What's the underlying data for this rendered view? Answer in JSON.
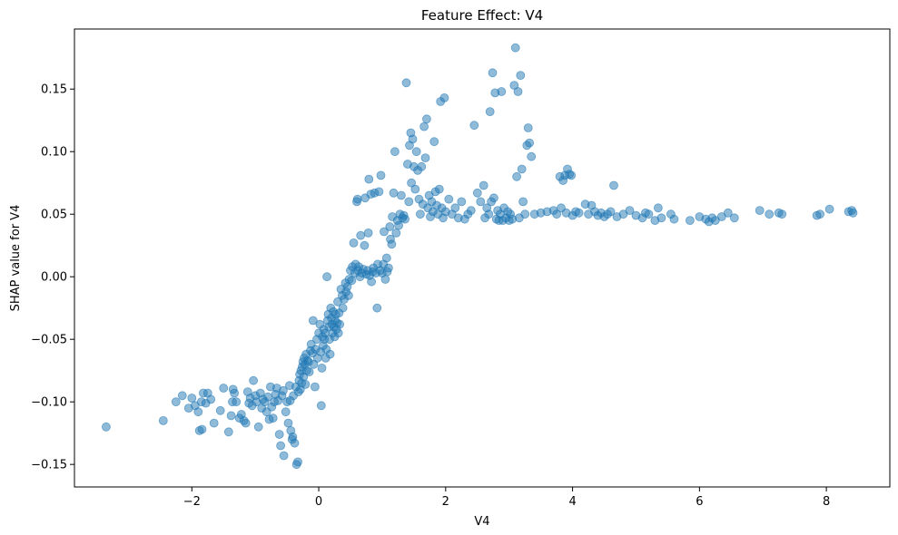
{
  "chart_data": {
    "type": "scatter",
    "title": "Feature Effect: V4",
    "xlabel": "V4",
    "ylabel": "SHAP value for V4",
    "xlim": [
      -3.85,
      9.0
    ],
    "ylim": [
      -0.168,
      0.198
    ],
    "xticks": [
      -2,
      0,
      2,
      4,
      6,
      8
    ],
    "yticks": [
      -0.15,
      -0.1,
      -0.05,
      0.0,
      0.05,
      0.1,
      0.15
    ],
    "xtick_labels": [
      "−2",
      "0",
      "2",
      "4",
      "6",
      "8"
    ],
    "ytick_labels": [
      "−0.15",
      "−0.10",
      "−0.05",
      "0.00",
      "0.05",
      "0.10",
      "0.15"
    ],
    "grid": false,
    "point_color": "#1f77b4",
    "point_alpha": 0.5,
    "points": [
      [
        -3.35,
        -0.12
      ],
      [
        -2.45,
        -0.115
      ],
      [
        -2.25,
        -0.1
      ],
      [
        -2.15,
        -0.095
      ],
      [
        -2.05,
        -0.105
      ],
      [
        -2.0,
        -0.097
      ],
      [
        -1.95,
        -0.103
      ],
      [
        -1.9,
        -0.108
      ],
      [
        -1.85,
        -0.1
      ],
      [
        -1.82,
        -0.093
      ],
      [
        -1.78,
        -0.101
      ],
      [
        -1.75,
        -0.093
      ],
      [
        -1.88,
        -0.123
      ],
      [
        -1.84,
        -0.122
      ],
      [
        -1.7,
        -0.098
      ],
      [
        -1.65,
        -0.117
      ],
      [
        -1.55,
        -0.107
      ],
      [
        -1.5,
        -0.089
      ],
      [
        -1.42,
        -0.124
      ],
      [
        -1.38,
        -0.111
      ],
      [
        -1.36,
        -0.1
      ],
      [
        -1.33,
        -0.093
      ],
      [
        -1.3,
        -0.1
      ],
      [
        -1.35,
        -0.09
      ],
      [
        -1.25,
        -0.113
      ],
      [
        -1.22,
        -0.11
      ],
      [
        -1.18,
        -0.115
      ],
      [
        -1.15,
        -0.117
      ],
      [
        -1.12,
        -0.092
      ],
      [
        -1.1,
        -0.101
      ],
      [
        -1.08,
        -0.097
      ],
      [
        -1.05,
        -0.103
      ],
      [
        -1.03,
        -0.083
      ],
      [
        -1.0,
        -0.095
      ],
      [
        -0.98,
        -0.1
      ],
      [
        -0.95,
        -0.12
      ],
      [
        -0.92,
        -0.093
      ],
      [
        -0.9,
        -0.105
      ],
      [
        -0.88,
        -0.098
      ],
      [
        -0.85,
        -0.1
      ],
      [
        -0.82,
        -0.108
      ],
      [
        -0.8,
        -0.096
      ],
      [
        -0.78,
        -0.114
      ],
      [
        -0.76,
        -0.088
      ],
      [
        -0.74,
        -0.104
      ],
      [
        -0.72,
        -0.113
      ],
      [
        -0.7,
        -0.1
      ],
      [
        -0.68,
        -0.094
      ],
      [
        -0.66,
        -0.089
      ],
      [
        -0.64,
        -0.099
      ],
      [
        -0.62,
        -0.126
      ],
      [
        -0.6,
        -0.135
      ],
      [
        -0.58,
        -0.095
      ],
      [
        -0.56,
        -0.091
      ],
      [
        -0.55,
        -0.143
      ],
      [
        -0.52,
        -0.108
      ],
      [
        -0.5,
        -0.1
      ],
      [
        -0.48,
        -0.117
      ],
      [
        -0.46,
        -0.087
      ],
      [
        -0.45,
        -0.099
      ],
      [
        -0.44,
        -0.123
      ],
      [
        -0.42,
        -0.13
      ],
      [
        -0.41,
        -0.128
      ],
      [
        -0.4,
        -0.095
      ],
      [
        -0.38,
        -0.133
      ],
      [
        -0.36,
        -0.088
      ],
      [
        -0.35,
        -0.15
      ],
      [
        -0.33,
        -0.148
      ],
      [
        -0.32,
        -0.092
      ],
      [
        -0.31,
        -0.083
      ],
      [
        -0.3,
        -0.078
      ],
      [
        -0.29,
        -0.09
      ],
      [
        -0.28,
        -0.075
      ],
      [
        -0.27,
        -0.085
      ],
      [
        -0.26,
        -0.072
      ],
      [
        -0.25,
        -0.068
      ],
      [
        -0.24,
        -0.08
      ],
      [
        -0.23,
        -0.065
      ],
      [
        -0.22,
        -0.07
      ],
      [
        -0.21,
        -0.086
      ],
      [
        -0.2,
        -0.062
      ],
      [
        -0.19,
        -0.075
      ],
      [
        -0.18,
        -0.067
      ],
      [
        -0.16,
        -0.068
      ],
      [
        -0.15,
        -0.076
      ],
      [
        -0.13,
        -0.059
      ],
      [
        -0.12,
        -0.054
      ],
      [
        -0.1,
        -0.061
      ],
      [
        -0.09,
        -0.035
      ],
      [
        -0.08,
        -0.07
      ],
      [
        -0.06,
        -0.088
      ],
      [
        -0.05,
        -0.058
      ],
      [
        -0.03,
        -0.05
      ],
      [
        -0.02,
        -0.065
      ],
      [
        0.0,
        -0.045
      ],
      [
        0.02,
        -0.038
      ],
      [
        0.03,
        -0.06
      ],
      [
        0.04,
        -0.103
      ],
      [
        0.05,
        -0.073
      ],
      [
        0.06,
        -0.048
      ],
      [
        0.07,
        -0.055
      ],
      [
        0.08,
        -0.042
      ],
      [
        0.09,
        -0.05
      ],
      [
        0.1,
        -0.045
      ],
      [
        0.11,
        -0.065
      ],
      [
        0.12,
        -0.058
      ],
      [
        0.13,
        0.0
      ],
      [
        0.14,
        -0.035
      ],
      [
        0.15,
        -0.03
      ],
      [
        0.16,
        -0.04
      ],
      [
        0.17,
        -0.05
      ],
      [
        0.18,
        -0.062
      ],
      [
        0.19,
        -0.025
      ],
      [
        0.2,
        -0.033
      ],
      [
        0.21,
        -0.038
      ],
      [
        0.22,
        -0.045
      ],
      [
        0.23,
        -0.028
      ],
      [
        0.24,
        -0.04
      ],
      [
        0.25,
        -0.048
      ],
      [
        0.26,
        -0.035
      ],
      [
        0.27,
        -0.03
      ],
      [
        0.28,
        -0.042
      ],
      [
        0.29,
        -0.037
      ],
      [
        0.3,
        -0.02
      ],
      [
        0.31,
        -0.045
      ],
      [
        0.32,
        -0.029
      ],
      [
        0.33,
        -0.038
      ],
      [
        0.35,
        -0.01
      ],
      [
        0.37,
        -0.015
      ],
      [
        0.38,
        -0.025
      ],
      [
        0.4,
        -0.018
      ],
      [
        0.42,
        -0.005
      ],
      [
        0.43,
        -0.012
      ],
      [
        0.45,
        -0.008
      ],
      [
        0.47,
        -0.015
      ],
      [
        0.48,
        -0.002
      ],
      [
        0.5,
        0.005
      ],
      [
        0.52,
        -0.003
      ],
      [
        0.53,
        0.008
      ],
      [
        0.55,
        0.027
      ],
      [
        0.57,
        0.003
      ],
      [
        0.58,
        0.01
      ],
      [
        0.6,
        0.06
      ],
      [
        0.61,
        0.062
      ],
      [
        0.62,
        0.005
      ],
      [
        0.63,
        0.008
      ],
      [
        0.65,
        0.0
      ],
      [
        0.66,
        0.033
      ],
      [
        0.68,
        0.003
      ],
      [
        0.7,
        0.006
      ],
      [
        0.72,
        0.025
      ],
      [
        0.73,
        0.063
      ],
      [
        0.75,
        0.002
      ],
      [
        0.77,
        0.005
      ],
      [
        0.78,
        0.035
      ],
      [
        0.79,
        0.078
      ],
      [
        0.8,
        0.001
      ],
      [
        0.82,
        0.066
      ],
      [
        0.83,
        -0.004
      ],
      [
        0.85,
        0.004
      ],
      [
        0.86,
        0.007
      ],
      [
        0.88,
        0.067
      ],
      [
        0.9,
        0.003
      ],
      [
        0.92,
        -0.025
      ],
      [
        0.93,
        0.01
      ],
      [
        0.95,
        0.068
      ],
      [
        0.97,
        0.005
      ],
      [
        0.98,
        0.081
      ],
      [
        1.0,
        0.003
      ],
      [
        1.02,
        0.01
      ],
      [
        1.03,
        0.036
      ],
      [
        1.05,
        -0.002
      ],
      [
        1.07,
        0.015
      ],
      [
        1.08,
        0.004
      ],
      [
        1.1,
        0.007
      ],
      [
        1.12,
        0.04
      ],
      [
        1.13,
        0.03
      ],
      [
        1.15,
        0.026
      ],
      [
        1.16,
        0.048
      ],
      [
        1.18,
        0.067
      ],
      [
        1.2,
        0.1
      ],
      [
        1.22,
        0.035
      ],
      [
        1.24,
        0.045
      ],
      [
        1.26,
        0.041
      ],
      [
        1.28,
        0.05
      ],
      [
        1.3,
        0.065
      ],
      [
        1.32,
        0.047
      ],
      [
        1.34,
        0.049
      ],
      [
        1.36,
        0.046
      ],
      [
        1.38,
        0.155
      ],
      [
        1.4,
        0.09
      ],
      [
        1.42,
        0.06
      ],
      [
        1.43,
        0.105
      ],
      [
        1.45,
        0.115
      ],
      [
        1.46,
        0.075
      ],
      [
        1.48,
        0.11
      ],
      [
        1.5,
        0.088
      ],
      [
        1.52,
        0.07
      ],
      [
        1.54,
        0.1
      ],
      [
        1.56,
        0.085
      ],
      [
        1.58,
        0.062
      ],
      [
        1.6,
        0.05
      ],
      [
        1.62,
        0.088
      ],
      [
        1.64,
        0.058
      ],
      [
        1.66,
        0.12
      ],
      [
        1.68,
        0.095
      ],
      [
        1.7,
        0.126
      ],
      [
        1.72,
        0.055
      ],
      [
        1.74,
        0.065
      ],
      [
        1.76,
        0.048
      ],
      [
        1.78,
        0.06
      ],
      [
        1.8,
        0.052
      ],
      [
        1.82,
        0.108
      ],
      [
        1.84,
        0.068
      ],
      [
        1.86,
        0.057
      ],
      [
        1.88,
        0.05
      ],
      [
        1.9,
        0.07
      ],
      [
        1.92,
        0.14
      ],
      [
        1.94,
        0.055
      ],
      [
        1.96,
        0.047
      ],
      [
        1.98,
        0.143
      ],
      [
        2.0,
        0.052
      ],
      [
        2.05,
        0.062
      ],
      [
        2.1,
        0.05
      ],
      [
        2.15,
        0.055
      ],
      [
        2.2,
        0.047
      ],
      [
        2.25,
        0.06
      ],
      [
        2.3,
        0.046
      ],
      [
        2.35,
        0.05
      ],
      [
        2.4,
        0.053
      ],
      [
        2.45,
        0.121
      ],
      [
        2.5,
        0.067
      ],
      [
        2.55,
        0.06
      ],
      [
        2.6,
        0.073
      ],
      [
        2.62,
        0.047
      ],
      [
        2.65,
        0.055
      ],
      [
        2.68,
        0.05
      ],
      [
        2.7,
        0.132
      ],
      [
        2.72,
        0.06
      ],
      [
        2.74,
        0.163
      ],
      [
        2.76,
        0.063
      ],
      [
        2.78,
        0.147
      ],
      [
        2.8,
        0.046
      ],
      [
        2.82,
        0.053
      ],
      [
        2.84,
        0.045
      ],
      [
        2.86,
        0.05
      ],
      [
        2.88,
        0.148
      ],
      [
        2.9,
        0.045
      ],
      [
        2.92,
        0.055
      ],
      [
        2.95,
        0.047
      ],
      [
        2.98,
        0.052
      ],
      [
        3.0,
        0.045
      ],
      [
        3.02,
        0.05
      ],
      [
        3.05,
        0.046
      ],
      [
        3.08,
        0.153
      ],
      [
        3.1,
        0.183
      ],
      [
        3.12,
        0.08
      ],
      [
        3.14,
        0.148
      ],
      [
        3.16,
        0.047
      ],
      [
        3.18,
        0.161
      ],
      [
        3.2,
        0.086
      ],
      [
        3.22,
        0.06
      ],
      [
        3.25,
        0.05
      ],
      [
        3.28,
        0.105
      ],
      [
        3.3,
        0.119
      ],
      [
        3.32,
        0.107
      ],
      [
        3.35,
        0.096
      ],
      [
        3.4,
        0.05
      ],
      [
        3.5,
        0.051
      ],
      [
        3.6,
        0.052
      ],
      [
        3.7,
        0.053
      ],
      [
        3.75,
        0.05
      ],
      [
        3.8,
        0.08
      ],
      [
        3.82,
        0.055
      ],
      [
        3.85,
        0.077
      ],
      [
        3.88,
        0.081
      ],
      [
        3.9,
        0.051
      ],
      [
        3.92,
        0.086
      ],
      [
        3.95,
        0.082
      ],
      [
        3.98,
        0.081
      ],
      [
        4.0,
        0.049
      ],
      [
        4.05,
        0.052
      ],
      [
        4.1,
        0.051
      ],
      [
        4.2,
        0.058
      ],
      [
        4.25,
        0.05
      ],
      [
        4.3,
        0.057
      ],
      [
        4.35,
        0.052
      ],
      [
        4.4,
        0.049
      ],
      [
        4.45,
        0.051
      ],
      [
        4.5,
        0.048
      ],
      [
        4.55,
        0.05
      ],
      [
        4.6,
        0.052
      ],
      [
        4.65,
        0.073
      ],
      [
        4.7,
        0.048
      ],
      [
        4.8,
        0.05
      ],
      [
        4.9,
        0.053
      ],
      [
        5.0,
        0.049
      ],
      [
        5.1,
        0.047
      ],
      [
        5.15,
        0.051
      ],
      [
        5.2,
        0.05
      ],
      [
        5.3,
        0.045
      ],
      [
        5.35,
        0.055
      ],
      [
        5.4,
        0.047
      ],
      [
        5.55,
        0.05
      ],
      [
        5.6,
        0.046
      ],
      [
        5.85,
        0.045
      ],
      [
        6.0,
        0.048
      ],
      [
        6.1,
        0.046
      ],
      [
        6.15,
        0.044
      ],
      [
        6.2,
        0.047
      ],
      [
        6.25,
        0.045
      ],
      [
        6.35,
        0.048
      ],
      [
        6.45,
        0.051
      ],
      [
        6.55,
        0.047
      ],
      [
        6.95,
        0.053
      ],
      [
        7.1,
        0.05
      ],
      [
        7.25,
        0.051
      ],
      [
        7.3,
        0.05
      ],
      [
        7.85,
        0.049
      ],
      [
        7.9,
        0.05
      ],
      [
        8.05,
        0.054
      ],
      [
        8.35,
        0.052
      ],
      [
        8.4,
        0.053
      ],
      [
        8.42,
        0.051
      ]
    ]
  }
}
